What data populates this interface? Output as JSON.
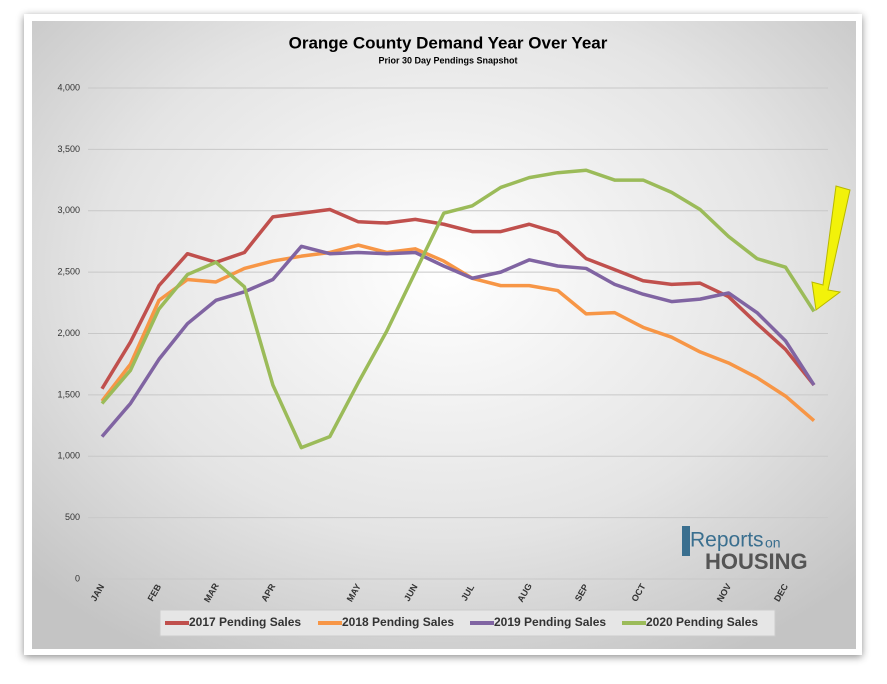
{
  "chart_data": {
    "type": "line",
    "title": "Orange County Demand Year Over Year",
    "subtitle": "Prior 30 Day Pendings Snapshot",
    "categories": [
      "JAN",
      null,
      "FEB",
      null,
      "MAR",
      null,
      "APR",
      null,
      null,
      "MAY",
      null,
      "JUN",
      null,
      "JUL",
      null,
      "AUG",
      null,
      "SEP",
      null,
      "OCT",
      null,
      null,
      "NOV",
      null,
      "DEC",
      null
    ],
    "series": [
      {
        "name": "2017 Pending Sales",
        "color": "#c0504d",
        "values": [
          1550,
          1930,
          2390,
          2650,
          2580,
          2660,
          2950,
          2980,
          3010,
          2910,
          2900,
          2930,
          2890,
          2830,
          2830,
          2890,
          2820,
          2610,
          2520,
          2430,
          2400,
          2410,
          2300,
          2080,
          1870,
          1580
        ]
      },
      {
        "name": "2018 Pending Sales",
        "color": "#f79646",
        "values": [
          1450,
          1750,
          2270,
          2440,
          2420,
          2530,
          2590,
          2630,
          2660,
          2720,
          2660,
          2690,
          2590,
          2450,
          2390,
          2390,
          2350,
          2160,
          2170,
          2050,
          1970,
          1850,
          1760,
          1640,
          1490,
          1290
        ]
      },
      {
        "name": "2019 Pending Sales",
        "color": "#8064a2",
        "values": [
          1160,
          1430,
          1790,
          2080,
          2270,
          2340,
          2440,
          2710,
          2650,
          2660,
          2650,
          2660,
          2550,
          2450,
          2500,
          2600,
          2550,
          2530,
          2400,
          2320,
          2260,
          2280,
          2330,
          2170,
          1940,
          1580
        ]
      },
      {
        "name": "2020 Pending Sales",
        "color": "#9bbb59",
        "values": [
          1430,
          1700,
          2200,
          2480,
          2580,
          2380,
          1580,
          1070,
          1160,
          1600,
          2020,
          2500,
          2980,
          3040,
          3190,
          3270,
          3310,
          3330,
          3250,
          3250,
          3150,
          3010,
          2790,
          2610,
          2540,
          2180
        ]
      }
    ],
    "ylim": [
      0,
      4000
    ],
    "yticks": [
      0,
      {
        "value": 500,
        "label": "500"
      },
      {
        "value": 1000,
        "label": "1,000"
      },
      {
        "value": 1500,
        "label": "1,500"
      },
      {
        "value": 2000,
        "label": "2,000"
      },
      {
        "value": 2500,
        "label": "2,500"
      },
      {
        "value": 3000,
        "label": "3,000"
      },
      {
        "value": 3500,
        "label": "3,500"
      },
      {
        "value": 4000,
        "label": "4,000"
      }
    ],
    "grid": true
  },
  "logo": {
    "first": "Reports",
    "middle": "on",
    "second": "HOUSING"
  }
}
